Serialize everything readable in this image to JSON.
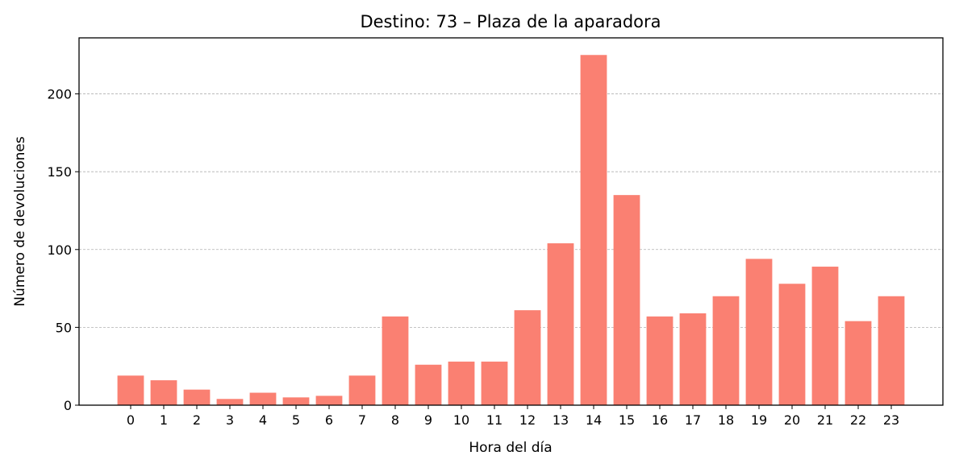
{
  "chart_data": {
    "type": "bar",
    "title": "Destino: 73 – Plaza de la aparadora",
    "xlabel": "Hora del día",
    "ylabel": "Número de devoluciones",
    "categories": [
      "0",
      "1",
      "2",
      "3",
      "4",
      "5",
      "6",
      "7",
      "8",
      "9",
      "10",
      "11",
      "12",
      "13",
      "14",
      "15",
      "16",
      "17",
      "18",
      "19",
      "20",
      "21",
      "22",
      "23"
    ],
    "values": [
      19,
      16,
      10,
      4,
      8,
      5,
      6,
      19,
      57,
      26,
      28,
      28,
      61,
      104,
      225,
      135,
      57,
      59,
      70,
      94,
      78,
      89,
      54,
      70
    ],
    "ylim": [
      0,
      236
    ],
    "yticks": [
      0,
      50,
      100,
      150,
      200
    ],
    "grid": "horizontal dashed",
    "legend": "none",
    "bar_color": "#fa8072"
  }
}
